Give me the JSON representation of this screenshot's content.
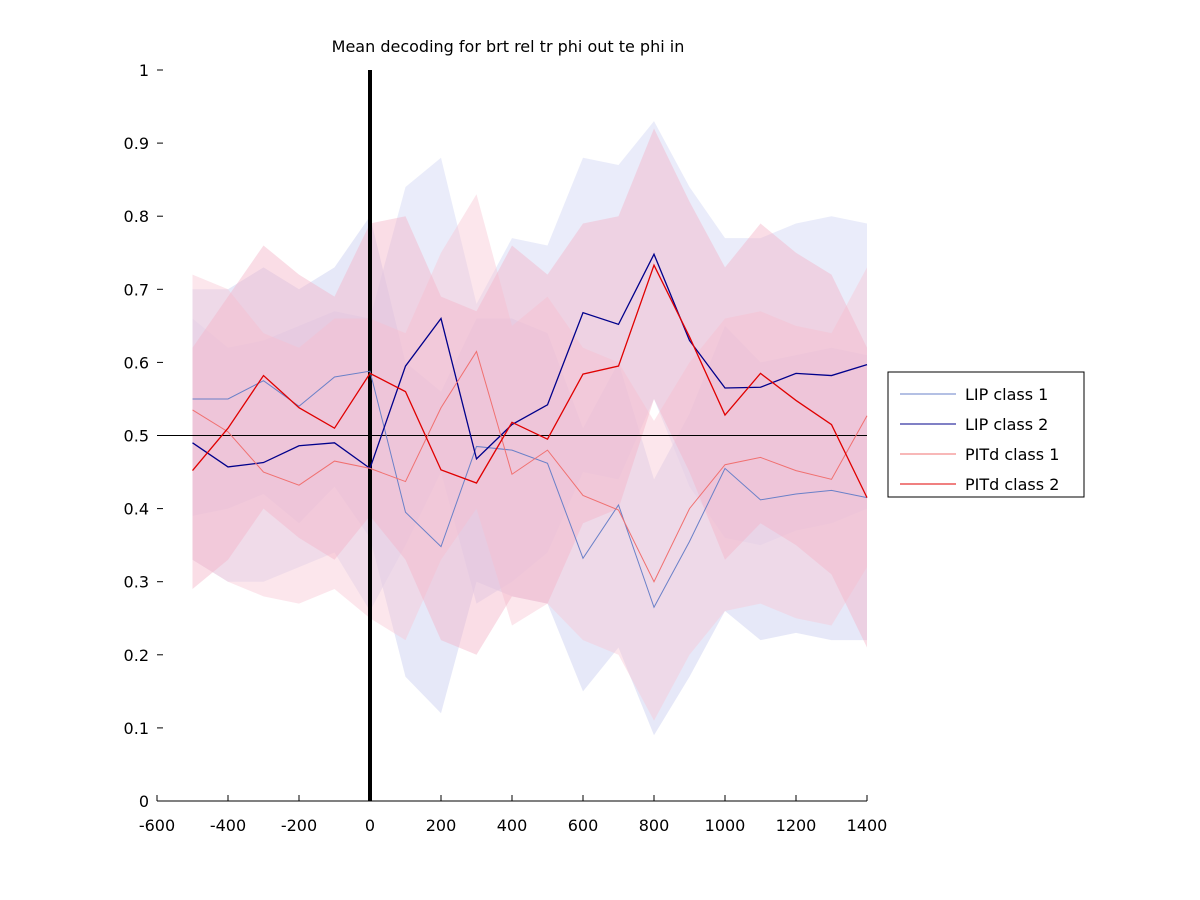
{
  "chart_data": {
    "type": "line",
    "title": "Mean decoding for brt rel tr phi out te phi in",
    "xlabel": "",
    "ylabel": "",
    "xlim": [
      -600,
      1400
    ],
    "ylim": [
      0,
      1
    ],
    "xticks": [
      -600,
      -400,
      -200,
      0,
      200,
      400,
      600,
      800,
      1000,
      1200,
      1400
    ],
    "xtick_labels": [
      "-600",
      "-400",
      "-200",
      "0",
      "200",
      "400",
      "600",
      "800",
      "1000",
      "1200",
      "1400"
    ],
    "yticks": [
      0,
      0.1,
      0.2,
      0.3,
      0.4,
      0.5,
      0.6,
      0.7,
      0.8,
      0.9,
      1
    ],
    "ytick_labels": [
      "0",
      "0.1",
      "0.2",
      "0.3",
      "0.4",
      "0.5",
      "0.6",
      "0.7",
      "0.8",
      "0.9",
      "1"
    ],
    "reference_hline": 0.5,
    "reference_vline": 0,
    "grid": false,
    "legend_placement": "outside-right",
    "x": [
      -500,
      -400,
      -300,
      -200,
      -100,
      0,
      100,
      200,
      300,
      400,
      500,
      600,
      700,
      800,
      900,
      1000,
      1100,
      1200,
      1300,
      1400
    ],
    "series": [
      {
        "name": "LIP class 1",
        "color": "#6a80c8",
        "band_color": "#c8cdf0",
        "values": [
          0.55,
          0.55,
          0.575,
          0.54,
          0.58,
          0.588,
          0.395,
          0.348,
          0.485,
          0.48,
          0.462,
          0.332,
          0.405,
          0.265,
          0.355,
          0.455,
          0.412,
          0.42,
          0.425,
          0.415
        ],
        "lower": [
          0.39,
          0.4,
          0.42,
          0.38,
          0.43,
          0.36,
          0.17,
          0.12,
          0.3,
          0.28,
          0.27,
          0.15,
          0.21,
          0.09,
          0.17,
          0.26,
          0.22,
          0.23,
          0.22,
          0.22
        ],
        "upper": [
          0.7,
          0.7,
          0.73,
          0.7,
          0.73,
          0.8,
          0.6,
          0.56,
          0.66,
          0.66,
          0.64,
          0.51,
          0.6,
          0.44,
          0.53,
          0.65,
          0.6,
          0.61,
          0.62,
          0.61
        ]
      },
      {
        "name": "LIP class 2",
        "color": "#00008b",
        "band_color": "#d0d4f5",
        "values": [
          0.49,
          0.457,
          0.463,
          0.486,
          0.49,
          0.455,
          0.595,
          0.66,
          0.468,
          0.515,
          0.542,
          0.668,
          0.652,
          0.748,
          0.63,
          0.565,
          0.566,
          0.585,
          0.582,
          0.597
        ],
        "lower": [
          0.33,
          0.3,
          0.3,
          0.32,
          0.34,
          0.26,
          0.35,
          0.45,
          0.27,
          0.3,
          0.34,
          0.45,
          0.44,
          0.55,
          0.43,
          0.36,
          0.35,
          0.37,
          0.38,
          0.4
        ],
        "upper": [
          0.66,
          0.62,
          0.63,
          0.65,
          0.67,
          0.66,
          0.84,
          0.88,
          0.68,
          0.77,
          0.76,
          0.88,
          0.87,
          0.93,
          0.84,
          0.77,
          0.77,
          0.79,
          0.8,
          0.79
        ]
      },
      {
        "name": "PITd class 1",
        "color": "#f07070",
        "band_color": "#f8c8d4",
        "values": [
          0.535,
          0.505,
          0.45,
          0.432,
          0.465,
          0.455,
          0.437,
          0.538,
          0.615,
          0.447,
          0.48,
          0.418,
          0.398,
          0.3,
          0.4,
          0.46,
          0.47,
          0.452,
          0.44,
          0.527
        ],
        "lower": [
          0.33,
          0.3,
          0.28,
          0.27,
          0.29,
          0.25,
          0.22,
          0.33,
          0.4,
          0.24,
          0.27,
          0.22,
          0.2,
          0.11,
          0.2,
          0.26,
          0.27,
          0.25,
          0.24,
          0.32
        ],
        "upper": [
          0.72,
          0.7,
          0.64,
          0.62,
          0.66,
          0.66,
          0.64,
          0.75,
          0.83,
          0.65,
          0.69,
          0.62,
          0.6,
          0.52,
          0.6,
          0.66,
          0.67,
          0.65,
          0.64,
          0.73
        ]
      },
      {
        "name": "PITd class 2",
        "color": "#e00000",
        "band_color": "#f4b4c8",
        "values": [
          0.452,
          0.51,
          0.582,
          0.538,
          0.51,
          0.585,
          0.56,
          0.453,
          0.435,
          0.518,
          0.495,
          0.584,
          0.595,
          0.733,
          0.635,
          0.528,
          0.585,
          0.548,
          0.515,
          0.415
        ],
        "lower": [
          0.29,
          0.33,
          0.4,
          0.36,
          0.33,
          0.39,
          0.33,
          0.22,
          0.2,
          0.28,
          0.27,
          0.38,
          0.4,
          0.55,
          0.45,
          0.33,
          0.38,
          0.35,
          0.31,
          0.21
        ],
        "upper": [
          0.62,
          0.69,
          0.76,
          0.72,
          0.69,
          0.79,
          0.8,
          0.69,
          0.67,
          0.76,
          0.72,
          0.79,
          0.8,
          0.92,
          0.82,
          0.73,
          0.79,
          0.75,
          0.72,
          0.62
        ]
      }
    ]
  }
}
